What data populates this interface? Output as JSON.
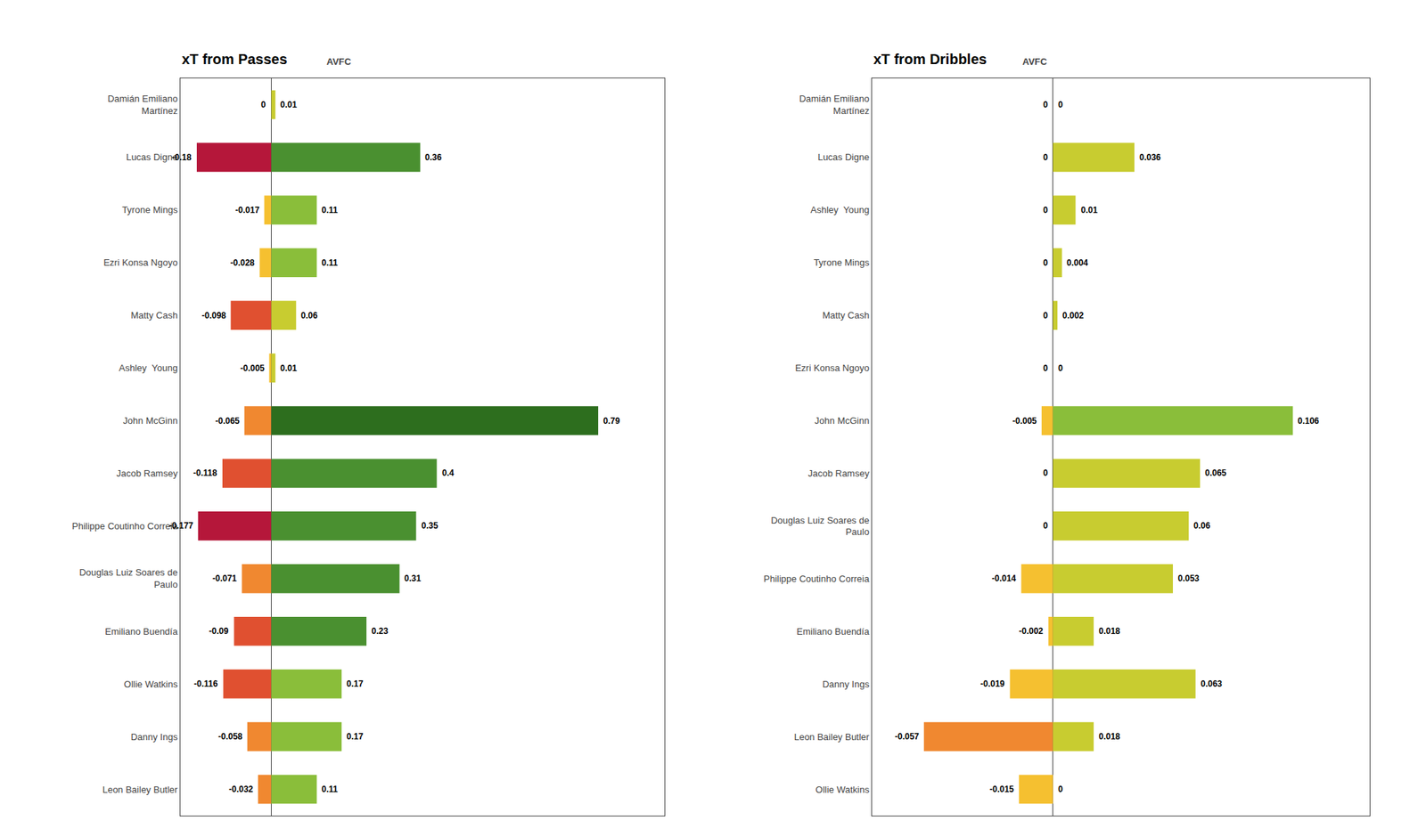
{
  "chart_data": [
    {
      "type": "bar",
      "orientation": "horizontal",
      "title": "xT from Passes",
      "categories": [
        "Damián Emiliano\nMartínez",
        "Lucas Digne",
        "Tyrone Mings",
        "Ezri Konsa Ngoyo",
        "Matty Cash",
        "Ashley  Young",
        "John McGinn",
        "Jacob Ramsey",
        "Philippe Coutinho Correia",
        "Douglas Luiz Soares de\nPaulo",
        "Emiliano Buendía",
        "Ollie Watkins",
        "Danny Ings",
        "Leon Bailey Butler"
      ],
      "series": [
        {
          "values": [
            0,
            -0.18,
            -0.017,
            -0.028,
            -0.098,
            -0.005,
            -0.065,
            -0.118,
            -0.177,
            -0.071,
            -0.09,
            -0.116,
            -0.058,
            -0.032
          ],
          "colors": [
            "#f5c030",
            "#b5173a",
            "#f5c030",
            "#f5c030",
            "#e05030",
            "#f5c030",
            "#f08830",
            "#e05030",
            "#b5173a",
            "#f08830",
            "#e05030",
            "#e05030",
            "#f08830",
            "#f08830"
          ]
        },
        {
          "values": [
            0.01,
            0.36,
            0.11,
            0.11,
            0.06,
            0.01,
            0.79,
            0.4,
            0.35,
            0.31,
            0.23,
            0.17,
            0.17,
            0.11
          ],
          "colors": [
            "#c8cc30",
            "#4a9030",
            "#8abe3a",
            "#8abe3a",
            "#c8cc30",
            "#c8cc30",
            "#2d6e1e",
            "#4a9030",
            "#4a9030",
            "#4a9030",
            "#4a9030",
            "#8abe3a",
            "#8abe3a",
            "#8abe3a"
          ]
        }
      ],
      "xlim": [
        -0.22,
        0.95
      ],
      "data_labels": true,
      "tick_labels": "y",
      "grid": false,
      "annotations": [
        "AVFC"
      ]
    },
    {
      "type": "bar",
      "orientation": "horizontal",
      "title": "xT from Dribbles",
      "categories": [
        "Damián Emiliano\nMartínez",
        "Lucas Digne",
        "Ashley  Young",
        "Tyrone Mings",
        "Matty Cash",
        "Ezri Konsa Ngoyo",
        "John McGinn",
        "Jacob Ramsey",
        "Douglas Luiz Soares de\nPaulo",
        "Philippe Coutinho Correia",
        "Emiliano Buendía",
        "Danny Ings",
        "Leon Bailey Butler",
        "Ollie Watkins"
      ],
      "series": [
        {
          "values": [
            0,
            0,
            0,
            0,
            0,
            0,
            -0.005,
            0,
            0,
            -0.014,
            -0.002,
            -0.019,
            -0.057,
            -0.015
          ],
          "colors": [
            "#f5c030",
            "#f5c030",
            "#f5c030",
            "#f5c030",
            "#f5c030",
            "#f5c030",
            "#f5c030",
            "#f5c030",
            "#f5c030",
            "#f5c030",
            "#f5c030",
            "#f5c030",
            "#f08830",
            "#f5c030"
          ]
        },
        {
          "values": [
            0,
            0.036,
            0.01,
            0.004,
            0.002,
            0,
            0.106,
            0.065,
            0.06,
            0.053,
            0.018,
            0.063,
            0.018,
            0
          ],
          "colors": [
            "#c8cc30",
            "#c8cc30",
            "#c8cc30",
            "#c8cc30",
            "#c8cc30",
            "#c8cc30",
            "#8abe3a",
            "#c8cc30",
            "#c8cc30",
            "#c8cc30",
            "#c8cc30",
            "#c8cc30",
            "#c8cc30",
            "#c8cc30"
          ]
        }
      ],
      "xlim": [
        -0.08,
        0.14
      ],
      "data_labels": true,
      "tick_labels": "y",
      "grid": false,
      "annotations": [
        "AVFC"
      ]
    }
  ]
}
